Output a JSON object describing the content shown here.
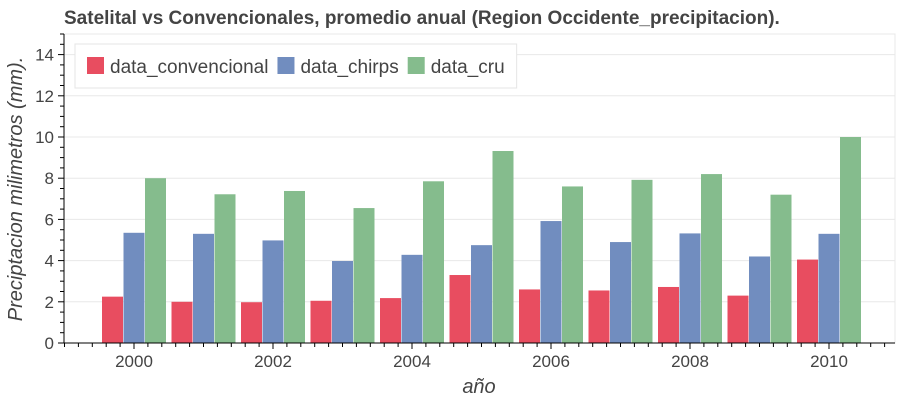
{
  "chart_data": {
    "type": "bar",
    "title": "Satelital vs Convencionales, promedio anual (Region Occidente_precipitacion).",
    "xlabel": "año",
    "ylabel": "Preciptacion milimetros (mm).",
    "categories": [
      "2000",
      "2001",
      "2002",
      "2003",
      "2004",
      "2005",
      "2006",
      "2007",
      "2008",
      "2009",
      "2010"
    ],
    "x_tick_labels": [
      "2000",
      "2002",
      "2004",
      "2006",
      "2008",
      "2010"
    ],
    "y_ticks": [
      0,
      2,
      4,
      6,
      8,
      10,
      12,
      14
    ],
    "ylim": [
      0,
      15
    ],
    "grid": true,
    "legend_position": "top-left",
    "series": [
      {
        "name": "data_convencional",
        "color": "#e84d60",
        "values": [
          2.25,
          2.0,
          1.98,
          2.05,
          2.18,
          3.3,
          2.6,
          2.55,
          2.72,
          2.3,
          4.05
        ]
      },
      {
        "name": "data_chirps",
        "color": "#718dbf",
        "values": [
          5.35,
          5.3,
          4.98,
          3.98,
          4.28,
          4.75,
          5.92,
          4.9,
          5.32,
          4.2,
          5.3
        ]
      },
      {
        "name": "data_cru",
        "color": "#85bc8d",
        "values": [
          8.0,
          7.22,
          7.38,
          6.55,
          7.85,
          9.32,
          7.6,
          7.92,
          8.2,
          7.2,
          10.0
        ]
      }
    ]
  }
}
